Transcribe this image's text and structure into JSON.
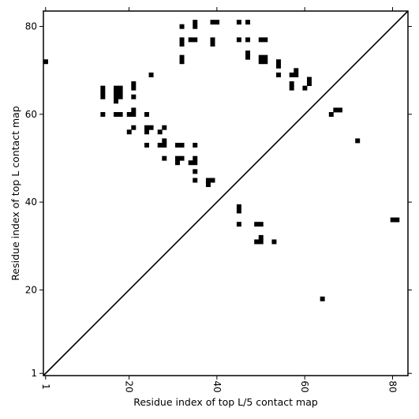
{
  "chart_data": {
    "type": "heatmap",
    "xlabel": "Residue index of top L/5 contact map",
    "ylabel": "Residue index of top L contact map",
    "xlim": [
      0.5,
      83.5
    ],
    "ylim": [
      0.5,
      83.5
    ],
    "xticks": [
      1,
      20,
      40,
      60,
      80
    ],
    "yticks": [
      1,
      20,
      40,
      60,
      80
    ],
    "diagonal": true,
    "cell_color": "#000000",
    "frame_color": "#000000",
    "background": "#ffffff",
    "upper_triangle_contacts": [
      [
        35,
        81
      ],
      [
        39,
        81
      ],
      [
        40,
        81
      ],
      [
        45,
        81
      ],
      [
        47,
        81
      ],
      [
        32,
        80
      ],
      [
        35,
        80
      ],
      [
        32,
        77
      ],
      [
        34,
        77
      ],
      [
        35,
        77
      ],
      [
        39,
        77
      ],
      [
        45,
        77
      ],
      [
        47,
        77
      ],
      [
        50,
        77
      ],
      [
        51,
        77
      ],
      [
        32,
        76
      ],
      [
        39,
        76
      ],
      [
        47,
        74
      ],
      [
        32,
        73
      ],
      [
        47,
        73
      ],
      [
        50,
        73
      ],
      [
        51,
        73
      ],
      [
        32,
        72
      ],
      [
        50,
        72
      ],
      [
        51,
        72
      ],
      [
        54,
        72
      ],
      [
        54,
        71
      ],
      [
        58,
        70
      ],
      [
        54,
        69
      ],
      [
        57,
        69
      ],
      [
        58,
        69
      ],
      [
        25,
        69
      ],
      [
        61,
        68
      ],
      [
        21,
        67
      ],
      [
        57,
        67
      ],
      [
        61,
        67
      ],
      [
        14,
        66
      ],
      [
        17,
        66
      ],
      [
        18,
        66
      ],
      [
        21,
        66
      ],
      [
        57,
        66
      ],
      [
        60,
        66
      ],
      [
        14,
        65
      ],
      [
        17,
        65
      ],
      [
        18,
        65
      ],
      [
        14,
        64
      ],
      [
        17,
        64
      ],
      [
        18,
        64
      ],
      [
        21,
        64
      ],
      [
        17,
        63
      ],
      [
        21,
        61
      ],
      [
        67,
        61
      ],
      [
        68,
        61
      ],
      [
        14,
        60
      ],
      [
        17,
        60
      ],
      [
        18,
        60
      ],
      [
        20,
        60
      ],
      [
        21,
        60
      ],
      [
        24,
        60
      ],
      [
        66,
        60
      ],
      [
        21,
        57
      ],
      [
        24,
        57
      ],
      [
        25,
        57
      ],
      [
        28,
        57
      ],
      [
        20,
        56
      ],
      [
        24,
        56
      ],
      [
        27,
        56
      ],
      [
        28,
        54
      ],
      [
        72,
        54
      ],
      [
        24,
        53
      ],
      [
        27,
        53
      ],
      [
        28,
        53
      ],
      [
        31,
        53
      ],
      [
        32,
        53
      ],
      [
        35,
        53
      ],
      [
        28,
        50
      ],
      [
        31,
        50
      ],
      [
        32,
        50
      ],
      [
        35,
        50
      ],
      [
        31,
        49
      ],
      [
        34,
        49
      ],
      [
        35,
        49
      ],
      [
        35,
        47
      ],
      [
        35,
        45
      ],
      [
        38,
        45
      ],
      [
        39,
        45
      ],
      [
        38,
        44
      ],
      [
        45,
        39
      ],
      [
        45,
        38
      ],
      [
        45,
        35
      ],
      [
        49,
        35
      ],
      [
        50,
        35
      ],
      [
        50,
        32
      ],
      [
        49,
        31
      ],
      [
        50,
        31
      ],
      [
        53,
        31
      ],
      [
        64,
        18
      ]
    ],
    "lower_triangle_contacts": [
      [
        1,
        72
      ],
      [
        80,
        36
      ],
      [
        81,
        36
      ]
    ]
  }
}
